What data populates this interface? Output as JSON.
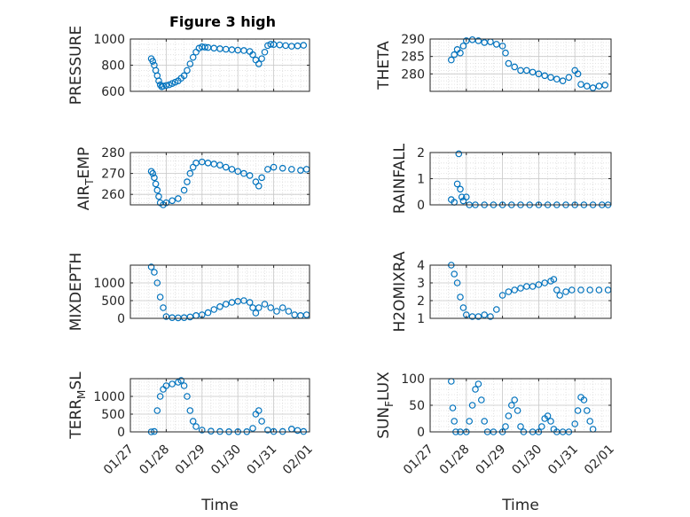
{
  "figure": {
    "title": "Figure 3 high",
    "marker_color": "#0072BD",
    "axis_color": "#262626",
    "grid_color": "#c8c8c8"
  },
  "chart_data": [
    {
      "type": "scatter",
      "ylabel": "PRESSURE",
      "xlabel": "",
      "xlim": [
        "01/27",
        "02/01"
      ],
      "ylim": [
        600,
        1000
      ],
      "yticks": [
        600,
        800,
        1000
      ],
      "xticks": [
        "01/27",
        "01/28",
        "01/29",
        "01/30",
        "01/31",
        "02/01"
      ],
      "grid": true,
      "points": [
        [
          "01/27 14:00",
          850
        ],
        [
          "01/27 15:00",
          830
        ],
        [
          "01/27 16:00",
          800
        ],
        [
          "01/27 17:00",
          760
        ],
        [
          "01/27 18:00",
          720
        ],
        [
          "01/27 19:00",
          680
        ],
        [
          "01/27 20:00",
          650
        ],
        [
          "01/27 21:00",
          635
        ],
        [
          "01/27 22:00",
          640
        ],
        [
          "01/28 00:00",
          645
        ],
        [
          "01/28 02:00",
          650
        ],
        [
          "01/28 04:00",
          660
        ],
        [
          "01/28 06:00",
          670
        ],
        [
          "01/28 08:00",
          680
        ],
        [
          "01/28 10:00",
          700
        ],
        [
          "01/28 12:00",
          720
        ],
        [
          "01/28 14:00",
          760
        ],
        [
          "01/28 16:00",
          810
        ],
        [
          "01/28 18:00",
          860
        ],
        [
          "01/28 20:00",
          900
        ],
        [
          "01/28 22:00",
          930
        ],
        [
          "01/29 00:00",
          940
        ],
        [
          "01/29 02:00",
          938
        ],
        [
          "01/29 04:00",
          935
        ],
        [
          "01/29 08:00",
          930
        ],
        [
          "01/29 12:00",
          926
        ],
        [
          "01/29 16:00",
          922
        ],
        [
          "01/29 20:00",
          918
        ],
        [
          "01/30 00:00",
          915
        ],
        [
          "01/30 04:00",
          912
        ],
        [
          "01/30 08:00",
          905
        ],
        [
          "01/30 10:00",
          880
        ],
        [
          "01/30 12:00",
          840
        ],
        [
          "01/30 14:00",
          810
        ],
        [
          "01/30 16:00",
          850
        ],
        [
          "01/30 18:00",
          900
        ],
        [
          "01/30 20:00",
          950
        ],
        [
          "01/30 22:00",
          960
        ],
        [
          "01/31 00:00",
          958
        ],
        [
          "01/31 04:00",
          955
        ],
        [
          "01/31 08:00",
          950
        ],
        [
          "01/31 12:00",
          945
        ],
        [
          "01/31 16:00",
          948
        ],
        [
          "01/31 20:00",
          952
        ]
      ]
    },
    {
      "type": "scatter",
      "ylabel": "THETA",
      "xlabel": "",
      "xlim": [
        "01/27",
        "02/01"
      ],
      "ylim": [
        275,
        290
      ],
      "yticks": [
        280,
        285,
        290
      ],
      "xticks": [
        "01/27",
        "01/28",
        "01/29",
        "01/30",
        "01/31",
        "02/01"
      ],
      "grid": true,
      "points": [
        [
          "01/27 14:00",
          284
        ],
        [
          "01/27 16:00",
          285.5
        ],
        [
          "01/27 18:00",
          287
        ],
        [
          "01/27 20:00",
          286
        ],
        [
          "01/27 22:00",
          288
        ],
        [
          "01/28 00:00",
          289.5
        ],
        [
          "01/28 04:00",
          289.8
        ],
        [
          "01/28 08:00",
          289.5
        ],
        [
          "01/28 12:00",
          289
        ],
        [
          "01/28 16:00",
          289.2
        ],
        [
          "01/28 20:00",
          288.5
        ],
        [
          "01/29 00:00",
          288
        ],
        [
          "01/29 02:00",
          286
        ],
        [
          "01/29 04:00",
          283
        ],
        [
          "01/29 08:00",
          282
        ],
        [
          "01/29 12:00",
          281
        ],
        [
          "01/29 16:00",
          281
        ],
        [
          "01/29 20:00",
          280.5
        ],
        [
          "01/30 00:00",
          280
        ],
        [
          "01/30 04:00",
          279.5
        ],
        [
          "01/30 08:00",
          279
        ],
        [
          "01/30 12:00",
          278.5
        ],
        [
          "01/30 16:00",
          278
        ],
        [
          "01/30 20:00",
          279
        ],
        [
          "01/31 00:00",
          281
        ],
        [
          "01/31 02:00",
          280
        ],
        [
          "01/31 04:00",
          277
        ],
        [
          "01/31 08:00",
          276.5
        ],
        [
          "01/31 12:00",
          276
        ],
        [
          "01/31 16:00",
          276.5
        ],
        [
          "01/31 20:00",
          276.8
        ]
      ]
    },
    {
      "type": "scatter",
      "ylabel": "AIR_TEMP",
      "xlabel": "",
      "xlim": [
        "01/27",
        "02/01"
      ],
      "ylim": [
        255,
        280
      ],
      "yticks": [
        260,
        270,
        280
      ],
      "xticks": [
        "01/27",
        "01/28",
        "01/29",
        "01/30",
        "01/31",
        "02/01"
      ],
      "grid": true,
      "points": [
        [
          "01/27 14:00",
          271
        ],
        [
          "01/27 15:00",
          270
        ],
        [
          "01/27 16:00",
          268
        ],
        [
          "01/27 17:00",
          265
        ],
        [
          "01/27 18:00",
          262
        ],
        [
          "01/27 19:00",
          259
        ],
        [
          "01/27 20:00",
          256
        ],
        [
          "01/27 22:00",
          255
        ],
        [
          "01/28 00:00",
          256
        ],
        [
          "01/28 04:00",
          257
        ],
        [
          "01/28 08:00",
          258
        ],
        [
          "01/28 12:00",
          262
        ],
        [
          "01/28 14:00",
          266
        ],
        [
          "01/28 16:00",
          270
        ],
        [
          "01/28 18:00",
          273
        ],
        [
          "01/28 20:00",
          275
        ],
        [
          "01/29 00:00",
          275.5
        ],
        [
          "01/29 04:00",
          275
        ],
        [
          "01/29 08:00",
          274.5
        ],
        [
          "01/29 12:00",
          274
        ],
        [
          "01/29 16:00",
          273
        ],
        [
          "01/29 20:00",
          272
        ],
        [
          "01/30 00:00",
          271
        ],
        [
          "01/30 04:00",
          270
        ],
        [
          "01/30 08:00",
          269
        ],
        [
          "01/30 12:00",
          266
        ],
        [
          "01/30 14:00",
          264
        ],
        [
          "01/30 16:00",
          268
        ],
        [
          "01/30 20:00",
          272
        ],
        [
          "01/31 00:00",
          273
        ],
        [
          "01/31 06:00",
          272.5
        ],
        [
          "01/31 12:00",
          272
        ],
        [
          "01/31 18:00",
          271.5
        ],
        [
          "01/31 22:00",
          272
        ]
      ]
    },
    {
      "type": "scatter",
      "ylabel": "RAINFALL",
      "xlabel": "",
      "xlim": [
        "01/27",
        "02/01"
      ],
      "ylim": [
        0,
        2
      ],
      "yticks": [
        0,
        1,
        2
      ],
      "xticks": [
        "01/27",
        "01/28",
        "01/29",
        "01/30",
        "01/31",
        "02/01"
      ],
      "grid": true,
      "points": [
        [
          "01/27 14:00",
          0.2
        ],
        [
          "01/27 16:00",
          0.1
        ],
        [
          "01/27 18:00",
          0.8
        ],
        [
          "01/27 19:00",
          1.95
        ],
        [
          "01/27 20:00",
          0.6
        ],
        [
          "01/27 21:00",
          0.3
        ],
        [
          "01/27 22:00",
          0.15
        ],
        [
          "01/28 00:00",
          0.3
        ],
        [
          "01/28 02:00",
          0
        ],
        [
          "01/28 06:00",
          0
        ],
        [
          "01/28 12:00",
          0
        ],
        [
          "01/28 18:00",
          0
        ],
        [
          "01/29 00:00",
          0
        ],
        [
          "01/29 06:00",
          0
        ],
        [
          "01/29 12:00",
          0
        ],
        [
          "01/29 18:00",
          0
        ],
        [
          "01/30 00:00",
          0
        ],
        [
          "01/30 06:00",
          0
        ],
        [
          "01/30 12:00",
          0
        ],
        [
          "01/30 18:00",
          0
        ],
        [
          "01/31 00:00",
          0
        ],
        [
          "01/31 06:00",
          0
        ],
        [
          "01/31 12:00",
          0
        ],
        [
          "01/31 18:00",
          0
        ],
        [
          "01/31 22:00",
          0
        ]
      ]
    },
    {
      "type": "scatter",
      "ylabel": "MIXDEPTH",
      "xlabel": "",
      "xlim": [
        "01/27",
        "02/01"
      ],
      "ylim": [
        0,
        1500
      ],
      "yticks": [
        0,
        500,
        1000
      ],
      "xticks": [
        "01/27",
        "01/28",
        "01/29",
        "01/30",
        "01/31",
        "02/01"
      ],
      "grid": true,
      "points": [
        [
          "01/27 14:00",
          1450
        ],
        [
          "01/27 16:00",
          1300
        ],
        [
          "01/27 18:00",
          1000
        ],
        [
          "01/27 20:00",
          600
        ],
        [
          "01/27 22:00",
          300
        ],
        [
          "01/28 00:00",
          50
        ],
        [
          "01/28 04:00",
          20
        ],
        [
          "01/28 08:00",
          15
        ],
        [
          "01/28 12:00",
          20
        ],
        [
          "01/28 16:00",
          40
        ],
        [
          "01/28 20:00",
          80
        ],
        [
          "01/29 00:00",
          100
        ],
        [
          "01/29 04:00",
          160
        ],
        [
          "01/29 08:00",
          250
        ],
        [
          "01/29 12:00",
          330
        ],
        [
          "01/29 16:00",
          400
        ],
        [
          "01/29 20:00",
          450
        ],
        [
          "01/30 00:00",
          480
        ],
        [
          "01/30 04:00",
          500
        ],
        [
          "01/30 08:00",
          450
        ],
        [
          "01/30 10:00",
          300
        ],
        [
          "01/30 12:00",
          150
        ],
        [
          "01/30 14:00",
          300
        ],
        [
          "01/30 18:00",
          400
        ],
        [
          "01/30 22:00",
          300
        ],
        [
          "01/31 02:00",
          200
        ],
        [
          "01/31 06:00",
          300
        ],
        [
          "01/31 10:00",
          200
        ],
        [
          "01/31 14:00",
          100
        ],
        [
          "01/31 18:00",
          80
        ],
        [
          "01/31 22:00",
          100
        ]
      ]
    },
    {
      "type": "scatter",
      "ylabel": "H2OMIXRA",
      "xlabel": "",
      "xlim": [
        "01/27",
        "02/01"
      ],
      "ylim": [
        1,
        4
      ],
      "yticks": [
        1,
        2,
        3,
        4
      ],
      "xticks": [
        "01/27",
        "01/28",
        "01/29",
        "01/30",
        "01/31",
        "02/01"
      ],
      "grid": true,
      "points": [
        [
          "01/27 14:00",
          4
        ],
        [
          "01/27 16:00",
          3.5
        ],
        [
          "01/27 18:00",
          3
        ],
        [
          "01/27 20:00",
          2.2
        ],
        [
          "01/27 22:00",
          1.6
        ],
        [
          "01/28 00:00",
          1.2
        ],
        [
          "01/28 04:00",
          1.1
        ],
        [
          "01/28 08:00",
          1.1
        ],
        [
          "01/28 12:00",
          1.2
        ],
        [
          "01/28 16:00",
          1.1
        ],
        [
          "01/28 20:00",
          1.5
        ],
        [
          "01/29 00:00",
          2.3
        ],
        [
          "01/29 04:00",
          2.5
        ],
        [
          "01/29 08:00",
          2.6
        ],
        [
          "01/29 12:00",
          2.7
        ],
        [
          "01/29 16:00",
          2.8
        ],
        [
          "01/29 20:00",
          2.8
        ],
        [
          "01/30 00:00",
          2.9
        ],
        [
          "01/30 04:00",
          3
        ],
        [
          "01/30 08:00",
          3.1
        ],
        [
          "01/30 10:00",
          3.2
        ],
        [
          "01/30 12:00",
          2.6
        ],
        [
          "01/30 14:00",
          2.3
        ],
        [
          "01/30 18:00",
          2.5
        ],
        [
          "01/30 22:00",
          2.6
        ],
        [
          "01/31 04:00",
          2.6
        ],
        [
          "01/31 10:00",
          2.6
        ],
        [
          "01/31 16:00",
          2.6
        ],
        [
          "01/31 22:00",
          2.6
        ]
      ]
    },
    {
      "type": "scatter",
      "ylabel": "TERR_MSL",
      "xlabel": "Time",
      "xlim": [
        "01/27",
        "02/01"
      ],
      "ylim": [
        0,
        1500
      ],
      "yticks": [
        0,
        500,
        1000
      ],
      "xticks": [
        "01/27",
        "01/28",
        "01/29",
        "01/30",
        "01/31",
        "02/01"
      ],
      "grid": true,
      "points": [
        [
          "01/27 14:00",
          0
        ],
        [
          "01/27 16:00",
          10
        ],
        [
          "01/27 18:00",
          600
        ],
        [
          "01/27 20:00",
          1000
        ],
        [
          "01/27 22:00",
          1200
        ],
        [
          "01/28 00:00",
          1300
        ],
        [
          "01/28 04:00",
          1350
        ],
        [
          "01/28 08:00",
          1400
        ],
        [
          "01/28 10:00",
          1450
        ],
        [
          "01/28 12:00",
          1300
        ],
        [
          "01/28 14:00",
          1000
        ],
        [
          "01/28 16:00",
          600
        ],
        [
          "01/28 18:00",
          300
        ],
        [
          "01/28 20:00",
          150
        ],
        [
          "01/29 00:00",
          50
        ],
        [
          "01/29 06:00",
          20
        ],
        [
          "01/29 12:00",
          10
        ],
        [
          "01/29 18:00",
          5
        ],
        [
          "01/30 00:00",
          5
        ],
        [
          "01/30 06:00",
          5
        ],
        [
          "01/30 10:00",
          100
        ],
        [
          "01/30 12:00",
          500
        ],
        [
          "01/30 14:00",
          600
        ],
        [
          "01/30 16:00",
          300
        ],
        [
          "01/30 20:00",
          50
        ],
        [
          "01/31 00:00",
          10
        ],
        [
          "01/31 06:00",
          10
        ],
        [
          "01/31 12:00",
          80
        ],
        [
          "01/31 16:00",
          40
        ],
        [
          "01/31 20:00",
          10
        ]
      ]
    },
    {
      "type": "scatter",
      "ylabel": "SUN_FLUX",
      "xlabel": "Time",
      "xlim": [
        "01/27",
        "02/01"
      ],
      "ylim": [
        0,
        100
      ],
      "yticks": [
        0,
        50,
        100
      ],
      "xticks": [
        "01/27",
        "01/28",
        "01/29",
        "01/30",
        "01/31",
        "02/01"
      ],
      "grid": true,
      "points": [
        [
          "01/27 14:00",
          95
        ],
        [
          "01/27 15:00",
          45
        ],
        [
          "01/27 16:00",
          20
        ],
        [
          "01/27 17:00",
          0
        ],
        [
          "01/27 20:00",
          0
        ],
        [
          "01/28 00:00",
          0
        ],
        [
          "01/28 02:00",
          20
        ],
        [
          "01/28 04:00",
          50
        ],
        [
          "01/28 06:00",
          80
        ],
        [
          "01/28 08:00",
          90
        ],
        [
          "01/28 10:00",
          60
        ],
        [
          "01/28 12:00",
          20
        ],
        [
          "01/28 14:00",
          0
        ],
        [
          "01/28 18:00",
          0
        ],
        [
          "01/29 00:00",
          0
        ],
        [
          "01/29 02:00",
          10
        ],
        [
          "01/29 04:00",
          30
        ],
        [
          "01/29 06:00",
          50
        ],
        [
          "01/29 08:00",
          60
        ],
        [
          "01/29 10:00",
          40
        ],
        [
          "01/29 12:00",
          10
        ],
        [
          "01/29 14:00",
          0
        ],
        [
          "01/29 20:00",
          0
        ],
        [
          "01/30 00:00",
          0
        ],
        [
          "01/30 02:00",
          10
        ],
        [
          "01/30 04:00",
          25
        ],
        [
          "01/30 06:00",
          30
        ],
        [
          "01/30 08:00",
          20
        ],
        [
          "01/30 10:00",
          5
        ],
        [
          "01/30 12:00",
          0
        ],
        [
          "01/30 16:00",
          0
        ],
        [
          "01/30 20:00",
          0
        ],
        [
          "01/31 00:00",
          15
        ],
        [
          "01/31 02:00",
          40
        ],
        [
          "01/31 04:00",
          65
        ],
        [
          "01/31 06:00",
          60
        ],
        [
          "01/31 08:00",
          40
        ],
        [
          "01/31 10:00",
          20
        ],
        [
          "01/31 12:00",
          5
        ]
      ]
    }
  ]
}
